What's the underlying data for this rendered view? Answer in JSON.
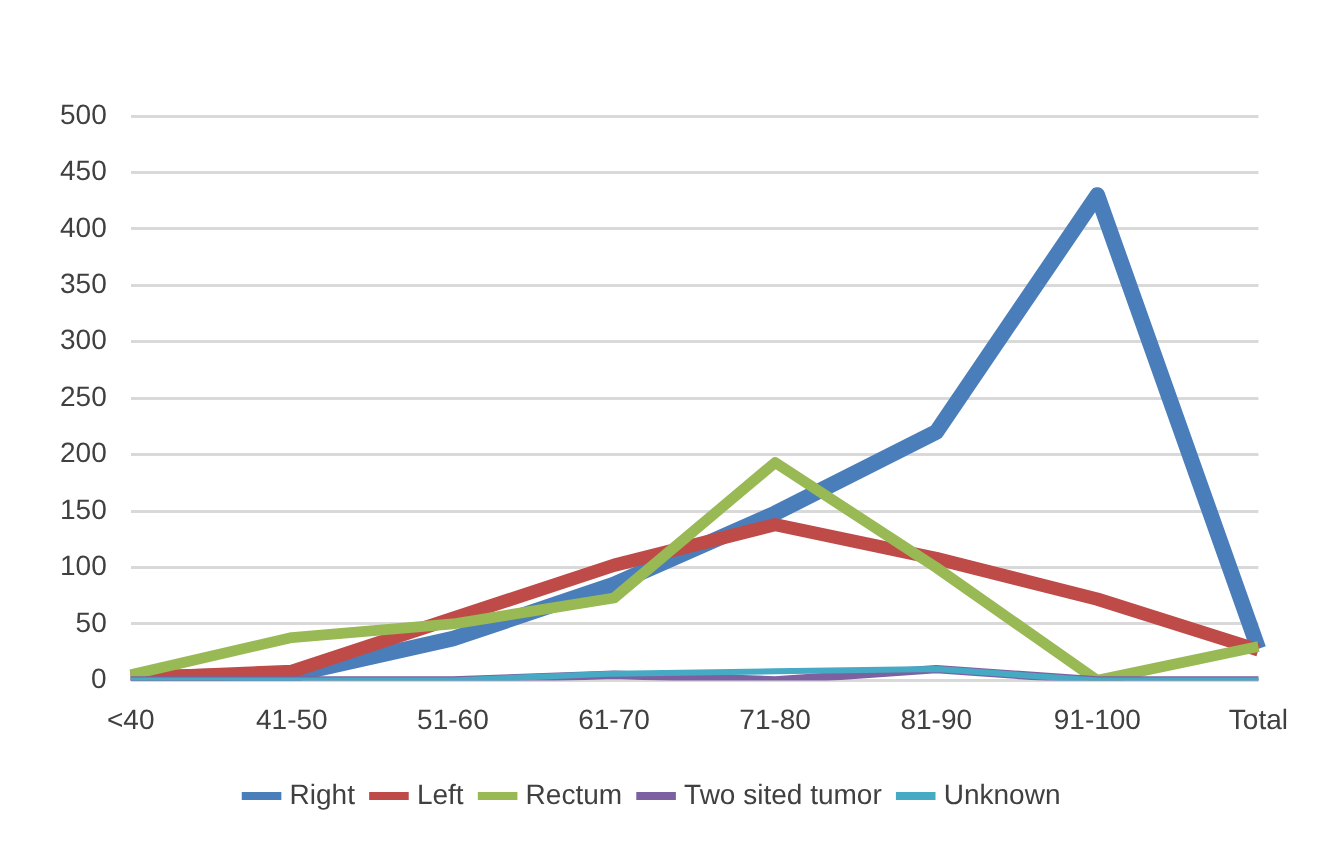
{
  "chart_data": {
    "type": "line",
    "categories": [
      "<40",
      "41-50",
      "51-60",
      "61-70",
      "71-80",
      "81-90",
      "91-100",
      "Total"
    ],
    "series": [
      {
        "name": "Right",
        "color": "#4a7ebb",
        "values": [
          2,
          5,
          37,
          85,
          148,
          220,
          430,
          28
        ]
      },
      {
        "name": "Left",
        "color": "#be4b48",
        "values": [
          2,
          8,
          55,
          102,
          138,
          108,
          72,
          27
        ]
      },
      {
        "name": "Rectum",
        "color": "#98b954",
        "values": [
          5,
          38,
          50,
          73,
          193,
          100,
          0,
          30
        ]
      },
      {
        "name": "Two sited tumor",
        "color": "#7d60a0",
        "values": [
          0,
          0,
          0,
          5,
          0,
          10,
          0,
          0
        ]
      },
      {
        "name": "Unknown",
        "color": "#46aac5",
        "values": [
          0,
          0,
          0,
          6,
          8,
          10,
          0,
          0
        ]
      }
    ],
    "ylim": [
      0,
      500
    ],
    "yticks": [
      0,
      50,
      100,
      150,
      200,
      250,
      300,
      350,
      400,
      450,
      500
    ],
    "grid": "y",
    "legend": "bottom",
    "marker": "none",
    "line_style": "solid"
  }
}
